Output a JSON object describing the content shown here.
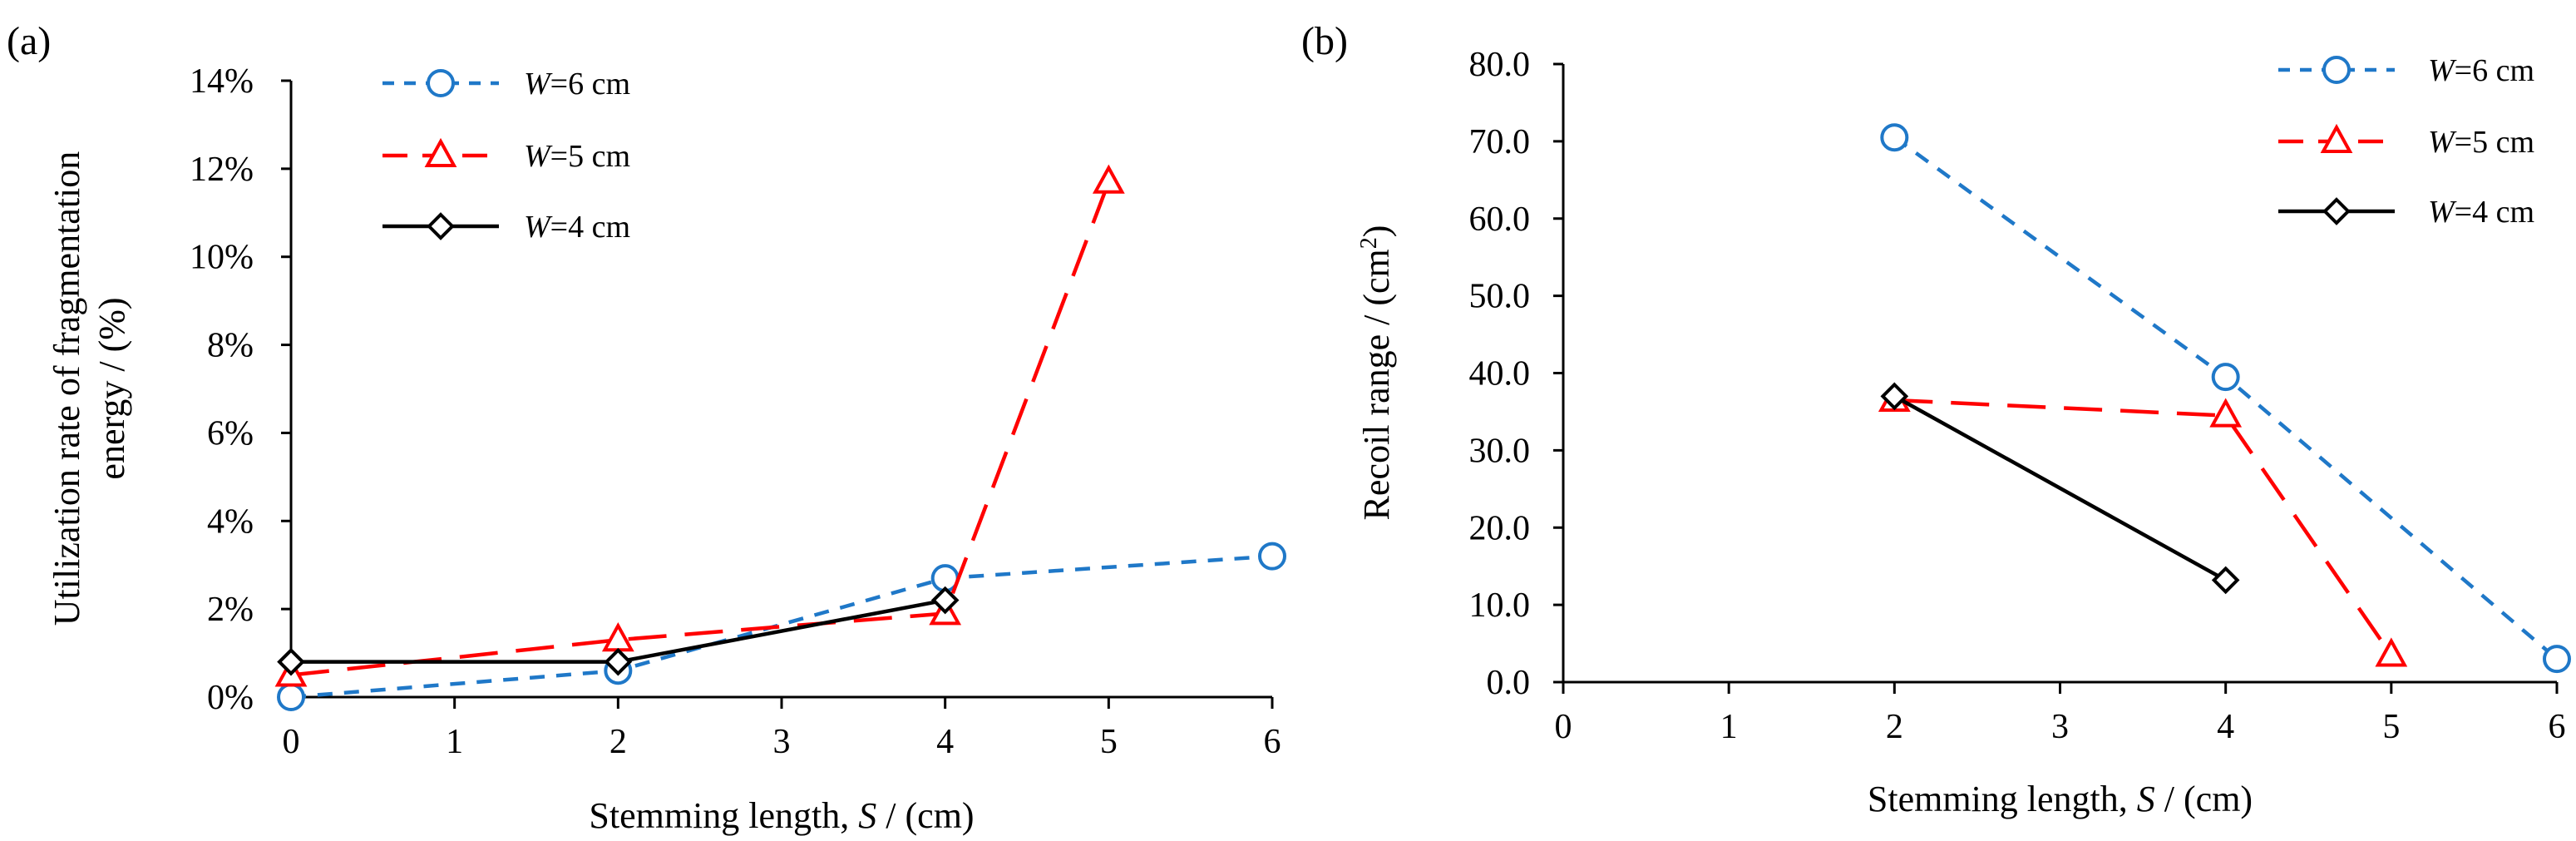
{
  "chart_data": [
    {
      "type": "line",
      "panel_label": "(a)",
      "xlabel": {
        "prefix": "Stemming length, ",
        "var": "S",
        "suffix": " / (cm)"
      },
      "ylabel": [
        "Utilization rate of fragmentation",
        "energy / (%)"
      ],
      "xlim": [
        0,
        6
      ],
      "ylim": [
        0,
        14
      ],
      "xticks": [
        "0",
        "1",
        "2",
        "3",
        "4",
        "5",
        "6"
      ],
      "yticks": [
        "0%",
        "2%",
        "4%",
        "6%",
        "8%",
        "10%",
        "12%",
        "14%"
      ],
      "legend_position": "top-center",
      "series": [
        {
          "name": "W=6 cm",
          "legend_var": "W",
          "legend_rest": "=6 cm",
          "color": "#1f78c8",
          "dash": "dashed-short",
          "marker": "circle",
          "x": [
            0,
            2,
            4,
            6
          ],
          "y": [
            0.0,
            0.6,
            2.7,
            3.2
          ]
        },
        {
          "name": "W=5 cm",
          "legend_var": "W",
          "legend_rest": "=5 cm",
          "color": "#ff0000",
          "dash": "dashed-long",
          "marker": "triangle",
          "x": [
            0,
            2,
            4,
            5
          ],
          "y": [
            0.5,
            1.3,
            1.9,
            11.7
          ]
        },
        {
          "name": "W=4 cm",
          "legend_var": "W",
          "legend_rest": "=4 cm",
          "color": "#000000",
          "dash": "solid",
          "marker": "diamond",
          "x": [
            0,
            2,
            4
          ],
          "y": [
            0.8,
            0.8,
            2.2
          ]
        }
      ]
    },
    {
      "type": "line",
      "panel_label": "(b)",
      "xlabel": {
        "prefix": "Stemming length, ",
        "var": "S",
        "suffix": " / (cm)"
      },
      "ylabel": {
        "text": "Recoil range / (cm",
        "sup": "2",
        "close": ")"
      },
      "xlim": [
        0,
        6
      ],
      "ylim": [
        0,
        80
      ],
      "xticks": [
        "0",
        "1",
        "2",
        "3",
        "4",
        "5",
        "6"
      ],
      "yticks": [
        "0.0",
        "10.0",
        "20.0",
        "30.0",
        "40.0",
        "50.0",
        "60.0",
        "70.0",
        "80.0"
      ],
      "legend_position": "top-right",
      "series": [
        {
          "name": "W=6 cm",
          "legend_var": "W",
          "legend_rest": "=6 cm",
          "color": "#1f78c8",
          "dash": "dashed-short",
          "marker": "circle",
          "x": [
            2,
            4,
            6
          ],
          "y": [
            70.5,
            39.5,
            3.0
          ]
        },
        {
          "name": "W=5 cm",
          "legend_var": "W",
          "legend_rest": "=5 cm",
          "color": "#ff0000",
          "dash": "dashed-long",
          "marker": "triangle",
          "x": [
            2,
            4,
            5
          ],
          "y": [
            36.5,
            34.5,
            3.5
          ]
        },
        {
          "name": "W=4 cm",
          "legend_var": "W",
          "legend_rest": "=4 cm",
          "color": "#000000",
          "dash": "solid",
          "marker": "diamond",
          "x": [
            2,
            4
          ],
          "y": [
            37.0,
            13.2
          ]
        }
      ]
    }
  ]
}
